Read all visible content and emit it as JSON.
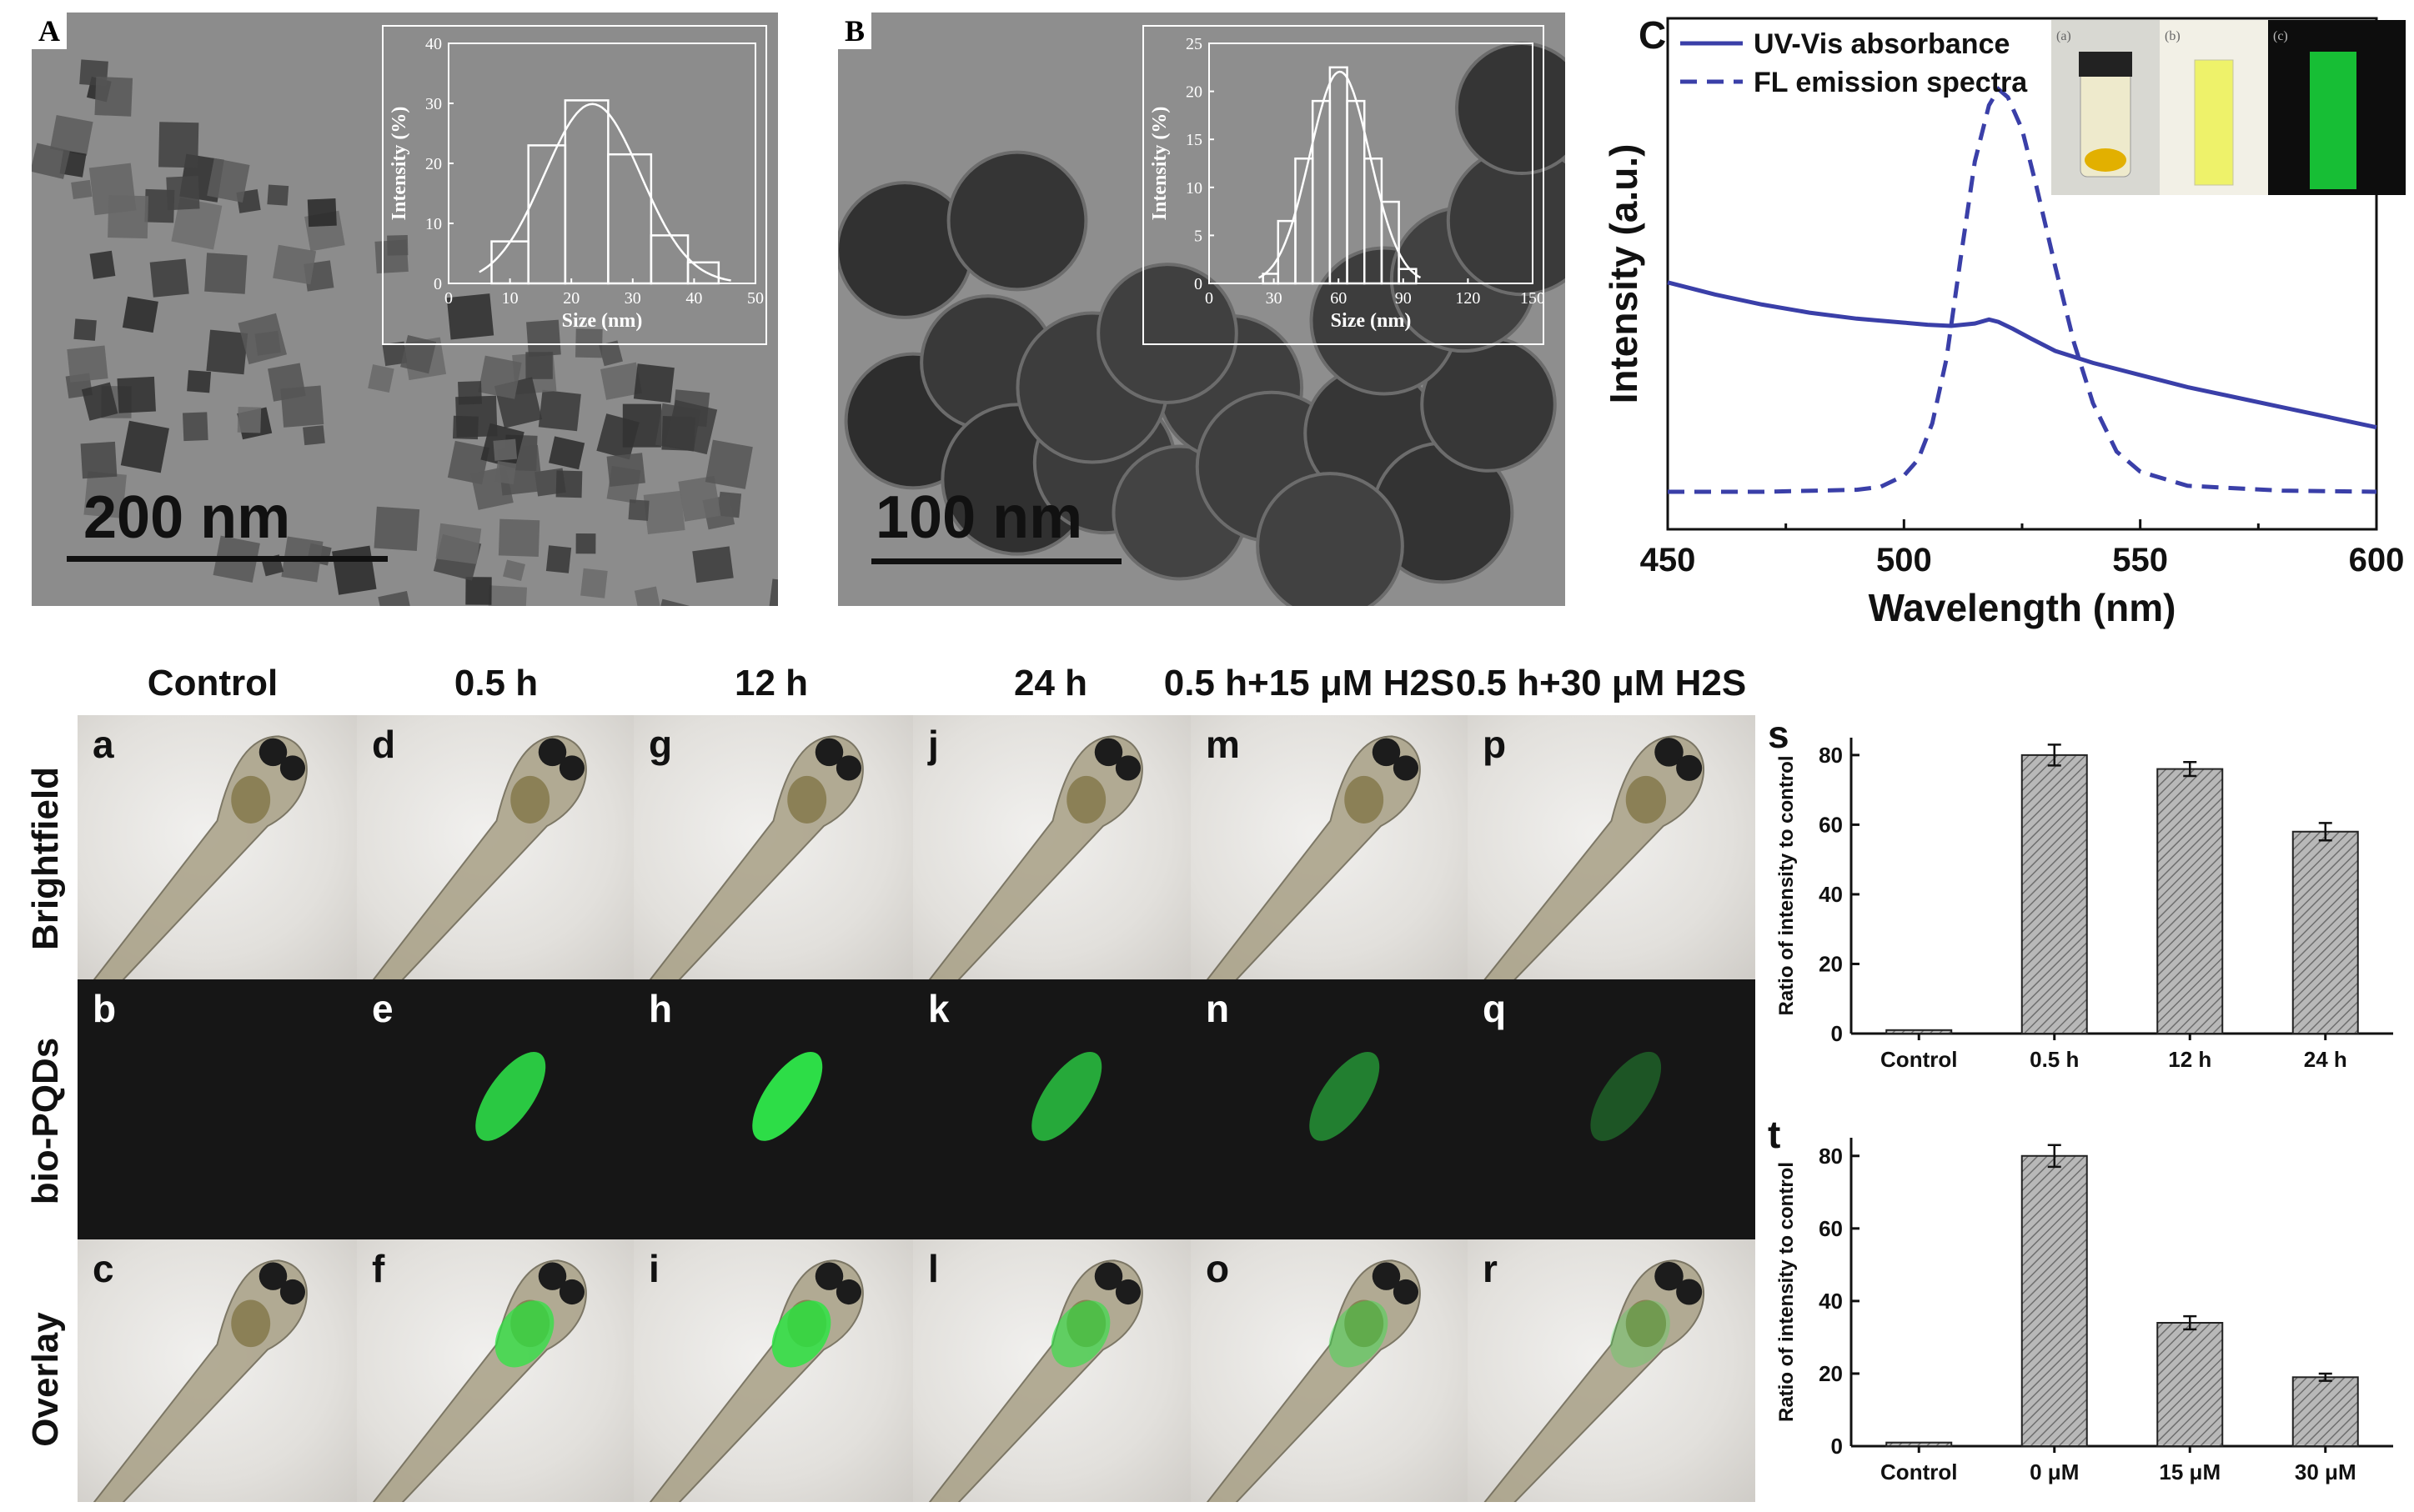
{
  "panelA": {
    "label": "A",
    "scale": "200 nm",
    "inset": {
      "xlabel": "Size (nm)",
      "ylabel": "Intensity (%)",
      "xticks": [
        "0",
        "10",
        "20",
        "30",
        "40",
        "50"
      ],
      "yticks": [
        "0",
        "10",
        "20",
        "30",
        "40"
      ],
      "xlim": [
        0,
        50
      ],
      "ylim": [
        0,
        40
      ],
      "bin_edges": [
        7,
        13,
        19,
        26,
        33,
        39,
        44
      ],
      "values": [
        7,
        23,
        30.5,
        21.5,
        8,
        3.5
      ]
    }
  },
  "panelB": {
    "label": "B",
    "scale": "100 nm",
    "inset": {
      "xlabel": "Size (nm)",
      "ylabel": "Intensity (%)",
      "xticks": [
        "0",
        "30",
        "60",
        "90",
        "120",
        "150"
      ],
      "yticks": [
        "0",
        "5",
        "10",
        "15",
        "20",
        "25"
      ],
      "xlim": [
        0,
        150
      ],
      "ylim": [
        0,
        25
      ],
      "bin_edges": [
        25,
        32,
        40,
        48,
        56,
        64,
        72,
        80,
        88,
        96
      ],
      "values": [
        1,
        6.5,
        13,
        19,
        22.5,
        19,
        13,
        8.5,
        1.5
      ]
    }
  },
  "panelC": {
    "label": "C",
    "xlabel": "Wavelength (nm)",
    "ylabel": "Intensity (a.u.)",
    "xticks": [
      "450",
      "500",
      "550",
      "600"
    ],
    "legend": [
      "UV-Vis absorbance",
      "FL emission spectra"
    ],
    "photo_labels": [
      "(a)",
      "(b)",
      "(c)"
    ],
    "chart_data": {
      "type": "line",
      "xlim": [
        450,
        600
      ],
      "series": [
        {
          "name": "UV-Vis absorbance",
          "style": "solid",
          "x": [
            450,
            460,
            470,
            480,
            490,
            500,
            505,
            510,
            515,
            518,
            520,
            523,
            527,
            532,
            540,
            550,
            560,
            570,
            580,
            590,
            600
          ],
          "y": [
            0.52,
            0.49,
            0.465,
            0.445,
            0.43,
            0.42,
            0.415,
            0.412,
            0.418,
            0.428,
            0.422,
            0.405,
            0.38,
            0.35,
            0.32,
            0.29,
            0.26,
            0.235,
            0.21,
            0.185,
            0.16
          ]
        },
        {
          "name": "FL emission spectra",
          "style": "dashed",
          "x": [
            450,
            470,
            490,
            495,
            500,
            503,
            506,
            509,
            512,
            515,
            518,
            520,
            522,
            525,
            528,
            532,
            536,
            540,
            545,
            550,
            560,
            580,
            600
          ],
          "y": [
            0.0,
            0.0,
            0.005,
            0.012,
            0.04,
            0.08,
            0.17,
            0.33,
            0.58,
            0.82,
            0.96,
            1.0,
            0.98,
            0.9,
            0.76,
            0.56,
            0.37,
            0.22,
            0.1,
            0.05,
            0.015,
            0.003,
            0.0
          ]
        }
      ]
    }
  },
  "grid": {
    "columns": [
      "Control",
      "0.5 h",
      "12 h",
      "24 h",
      "0.5 h+15 μM H2S",
      "0.5 h+30 μM H2S"
    ],
    "rows": [
      "Brightfield",
      "bio-PQDs",
      "Overlay"
    ],
    "letters": [
      [
        "a",
        "d",
        "g",
        "j",
        "m",
        "p"
      ],
      [
        "b",
        "e",
        "h",
        "k",
        "n",
        "q"
      ],
      [
        "c",
        "f",
        "i",
        "l",
        "o",
        "r"
      ]
    ],
    "green_intensity": [
      0,
      0.85,
      0.95,
      0.7,
      0.5,
      0.3
    ]
  },
  "panelS": {
    "label": "s",
    "ylabel": "Ratio of intensity to control",
    "yticks": [
      "0",
      "20",
      "40",
      "60",
      "80"
    ],
    "chart_data": {
      "type": "bar",
      "categories": [
        "Control",
        "0.5 h",
        "12 h",
        "24 h"
      ],
      "values": [
        1,
        80,
        76,
        58
      ],
      "errors": [
        0,
        3,
        2,
        2.5
      ],
      "ylim": [
        0,
        85
      ]
    }
  },
  "panelT": {
    "label": "t",
    "ylabel": "Ratio of intensity to control",
    "yticks": [
      "0",
      "20",
      "40",
      "60",
      "80"
    ],
    "chart_data": {
      "type": "bar",
      "categories": [
        "Control",
        "0 μM",
        "15 μM",
        "30 μM"
      ],
      "values": [
        1,
        80,
        34,
        19
      ],
      "errors": [
        0,
        3,
        1.8,
        1
      ],
      "ylim": [
        0,
        85
      ]
    }
  }
}
